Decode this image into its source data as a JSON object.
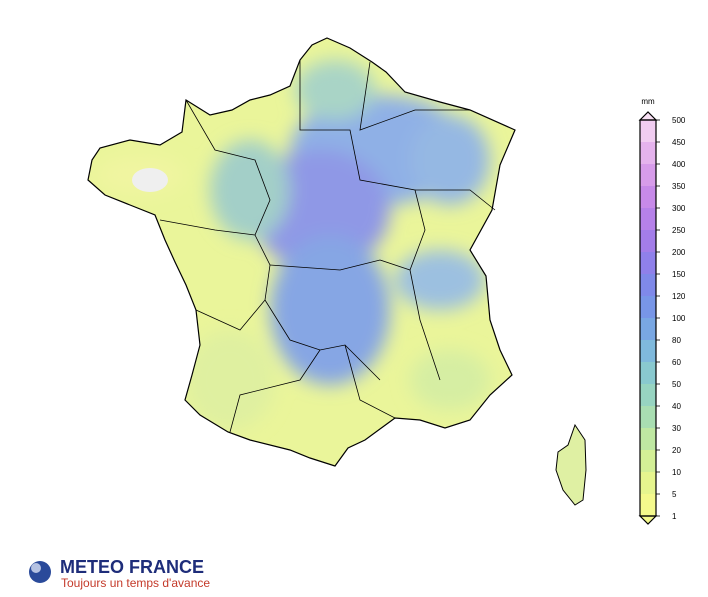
{
  "legend": {
    "unit": "mm",
    "ticks": [
      1,
      5,
      10,
      20,
      30,
      40,
      50,
      60,
      80,
      100,
      120,
      150,
      200,
      250,
      300,
      350,
      400,
      450,
      500
    ],
    "colors": [
      "#f4f98c",
      "#e6f58e",
      "#d3ef96",
      "#bfe8a2",
      "#a9deb2",
      "#97d4c1",
      "#89c9cf",
      "#7fb9dc",
      "#79a7e3",
      "#7896e7",
      "#7f89e9",
      "#8f80ea",
      "#a37de9",
      "#b681e9",
      "#c78ae9",
      "#d79cea",
      "#e5b3ed",
      "#f1cdf1"
    ],
    "low_color": "#f4f98c",
    "high_color": "#f8e0f4"
  },
  "logo": {
    "name": "METEO FRANCE",
    "tagline": "Toujours un temps d'avance"
  }
}
